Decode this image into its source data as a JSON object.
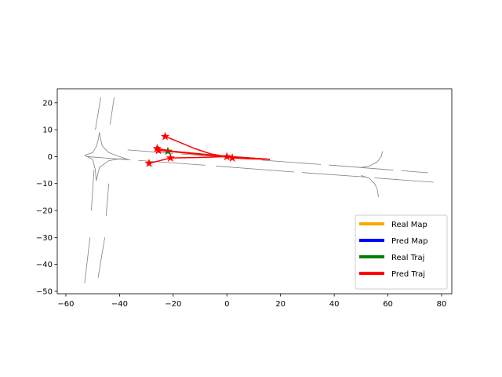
{
  "chart_data": {
    "type": "trajectory",
    "xlim": [
      -63.2,
      83.8
    ],
    "ylim": [
      -50.9,
      25.2
    ],
    "xticks": [
      {
        "value": -60,
        "label": "−60"
      },
      {
        "value": -40,
        "label": "−40"
      },
      {
        "value": -20,
        "label": "−20"
      },
      0,
      20,
      40,
      60,
      80
    ],
    "yticks": [
      {
        "value": -50,
        "label": "−50"
      },
      {
        "value": -40,
        "label": "−40"
      },
      {
        "value": -30,
        "label": "−30"
      },
      {
        "value": -20,
        "label": "−20"
      },
      {
        "value": -10,
        "label": "−10"
      },
      0,
      10,
      20
    ],
    "legend": "lower right",
    "map_lines": {
      "color": "#808080",
      "lines": [
        {
          "x": [
            -37,
            -20
          ],
          "y": [
            2.5,
            1.2
          ]
        },
        {
          "x": [
            -17,
            10
          ],
          "y": [
            1.0,
            -1.0
          ]
        },
        {
          "x": [
            13,
            35
          ],
          "y": [
            -1.3,
            -2.9
          ]
        },
        {
          "x": [
            38,
            62
          ],
          "y": [
            -3.1,
            -5.0
          ]
        },
        {
          "x": [
            65,
            75
          ],
          "y": [
            -5.2,
            -6
          ]
        },
        {
          "x": [
            -52,
            -36
          ],
          "y": [
            0,
            -1.2
          ]
        },
        {
          "x": [
            -33,
            -8
          ],
          "y": [
            -1.4,
            -3.2
          ]
        },
        {
          "x": [
            -4,
            25
          ],
          "y": [
            -3.5,
            -5.7
          ]
        },
        {
          "x": [
            28,
            52
          ],
          "y": [
            -5.9,
            -7.6
          ]
        },
        {
          "x": [
            55,
            77
          ],
          "y": [
            -7.9,
            -9.5
          ]
        },
        {
          "x": [
            -53,
            -50,
            -48.5,
            -47.8,
            -47.5
          ],
          "y": [
            0.5,
            1.5,
            4,
            7,
            9
          ]
        },
        {
          "x": [
            -53,
            -50,
            -49,
            -48.7
          ],
          "y": [
            0.5,
            -1,
            -5,
            -9
          ]
        },
        {
          "x": [
            -47.5,
            -46.5,
            -44,
            -40,
            -37
          ],
          "y": [
            9,
            4,
            1.5,
            0,
            -1
          ]
        },
        {
          "x": [
            -48.7,
            -47.5,
            -44,
            -40,
            -37
          ],
          "y": [
            -9,
            -4,
            -1.5,
            -0.8,
            -1
          ]
        },
        {
          "x": [
            -53,
            -51
          ],
          "y": [
            -47,
            -30
          ]
        },
        {
          "x": [
            -50.5,
            -49.5
          ],
          "y": [
            -20,
            -5
          ]
        },
        {
          "x": [
            -49,
            -47
          ],
          "y": [
            10,
            22
          ]
        },
        {
          "x": [
            -48,
            -45.5
          ],
          "y": [
            -45,
            -30
          ]
        },
        {
          "x": [
            -45,
            -44
          ],
          "y": [
            -22,
            -10
          ]
        },
        {
          "x": [
            -43.5,
            -42
          ],
          "y": [
            12,
            22
          ]
        },
        {
          "x": [
            58,
            57.5,
            56,
            53,
            50
          ],
          "y": [
            2,
            0,
            -2,
            -3.5,
            -4
          ]
        },
        {
          "x": [
            50,
            53,
            55,
            56,
            56.5
          ],
          "y": [
            -7,
            -8,
            -10,
            -12,
            -15
          ]
        }
      ]
    },
    "series": [
      {
        "name": "Real Map",
        "color": "#ffa500",
        "lines": []
      },
      {
        "name": "Pred Map",
        "color": "#0000ff",
        "lines": []
      },
      {
        "name": "Real Traj",
        "color": "#008000",
        "lines": [
          {
            "x": [
              16,
              10,
              5,
              0,
              -5,
              -10,
              -15,
              -22
            ],
            "y": [
              -1,
              -0.6,
              -0.2,
              0,
              0.5,
              1,
              1.5,
              2
            ]
          }
        ]
      },
      {
        "name": "Pred Traj",
        "color": "#ff0000",
        "lines": [
          {
            "x": [
              16,
              8,
              0,
              -6,
              -12,
              -18,
              -23
            ],
            "y": [
              -1,
              -0.5,
              0,
              1,
              3,
              5.5,
              7.5
            ]
          },
          {
            "x": [
              16,
              8,
              0,
              -10,
              -20,
              -26
            ],
            "y": [
              -1,
              -0.5,
              0,
              1,
              2,
              3
            ]
          },
          {
            "x": [
              16,
              8,
              0,
              -10,
              -20,
              -25.5
            ],
            "y": [
              -1,
              -0.6,
              0,
              0.8,
              1.8,
              2.3
            ]
          },
          {
            "x": [
              16,
              8,
              0,
              -10,
              -21
            ],
            "y": [
              -1,
              -0.6,
              0,
              -0.3,
              -0.5
            ]
          },
          {
            "x": [
              -21,
              -25,
              -29
            ],
            "y": [
              -0.5,
              -1.5,
              -2.5
            ]
          },
          {
            "x": [
              16,
              8,
              2
            ],
            "y": [
              -1,
              -0.8,
              -0.5
            ]
          },
          {
            "x": [
              16,
              8,
              0
            ],
            "y": [
              -1,
              -0.5,
              0
            ]
          }
        ]
      }
    ]
  }
}
